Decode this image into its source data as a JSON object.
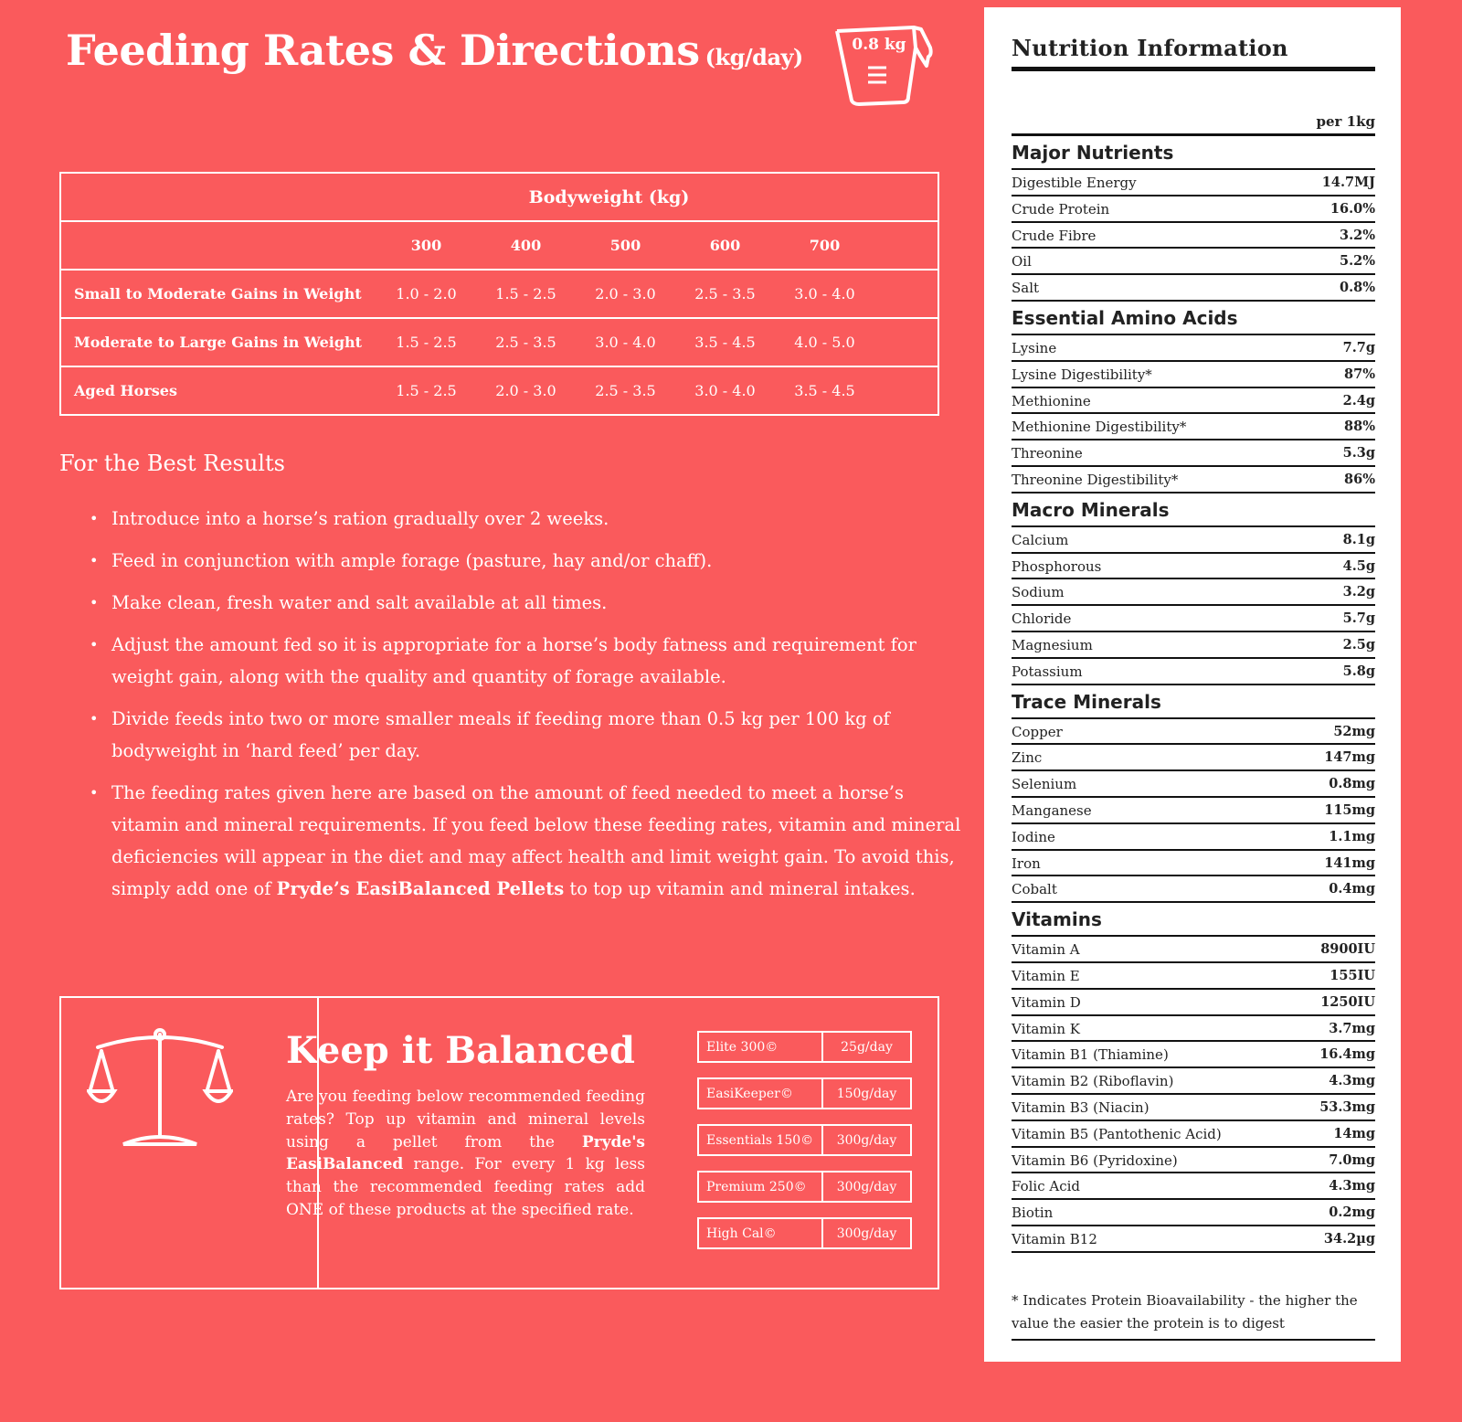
{
  "header": {
    "title": "Feeding Rates & Directions",
    "unit": "(kg/day)",
    "scoop_label": "0.8 kg"
  },
  "feeding_table": {
    "heading": "Bodyweight (kg)",
    "columns": [
      "300",
      "400",
      "500",
      "600",
      "700"
    ],
    "rows": [
      {
        "label": "Small to Moderate Gains in Weight",
        "values": [
          "1.0 - 2.0",
          "1.5 - 2.5",
          "2.0 - 3.0",
          "2.5 - 3.5",
          "3.0 - 4.0"
        ]
      },
      {
        "label": "Moderate to Large Gains in Weight",
        "values": [
          "1.5 - 2.5",
          "2.5 - 3.5",
          "3.0 - 4.0",
          "3.5 - 4.5",
          "4.0 - 5.0"
        ]
      },
      {
        "label": "Aged Horses",
        "values": [
          "1.5 - 2.5",
          "2.0 - 3.0",
          "2.5 - 3.5",
          "3.0 - 4.0",
          "3.5 - 4.5"
        ]
      }
    ]
  },
  "best_results": {
    "heading": "For the Best Results",
    "bullets": [
      [
        "Introduce into a horse’s ration gradually over 2 weeks."
      ],
      [
        "Feed in conjunction with ample forage (pasture, hay and/or chaff)."
      ],
      [
        "Make clean, fresh water and salt available at all times."
      ],
      [
        "Adjust the amount fed so it is appropriate for a horse’s body fatness and requirement for weight gain, along with the quality and quantity of forage available."
      ],
      [
        "Divide feeds into two or more smaller meals if feeding more than 0.5 kg per 100 kg of bodyweight in ‘hard feed’ per day."
      ],
      [
        "The feeding rates given here are based on the amount of feed needed to meet a horse’s vitamin and mineral requirements. If you feed below these feeding rates, vitamin and mineral deficiencies will appear in the diet and may affect health and limit weight gain. To avoid this, simply add one of ",
        "Pryde’s EasiBalanced Pellets",
        " to top up vitamin and mineral intakes."
      ]
    ]
  },
  "balanced": {
    "title": "Keep it Balanced",
    "text": [
      "Are you feeding below recommended feeding rates? Top up vitamin and mineral levels using a pellet from the ",
      "Pryde's EasiBalanced",
      " range. For every 1 kg less than the recommended feeding rates add ONE of these products at the specified rate."
    ],
    "products": [
      {
        "name": "Elite 300©",
        "rate": "25g/day"
      },
      {
        "name": "EasiKeeper©",
        "rate": "150g/day"
      },
      {
        "name": "Essentials 150©",
        "rate": "300g/day"
      },
      {
        "name": "Premium 250©",
        "rate": "300g/day"
      },
      {
        "name": "High Cal©",
        "rate": "300g/day"
      }
    ]
  },
  "nutrition": {
    "title": "Nutrition Information",
    "per": "per 1kg",
    "sections": [
      {
        "heading": "Major Nutrients",
        "rows": [
          [
            "Digestible Energy",
            "14.7MJ"
          ],
          [
            "Crude Protein",
            "16.0%"
          ],
          [
            "Crude Fibre",
            "3.2%"
          ],
          [
            "Oil",
            "5.2%"
          ],
          [
            "Salt",
            "0.8%"
          ]
        ]
      },
      {
        "heading": "Essential Amino Acids",
        "rows": [
          [
            "Lysine",
            "7.7g"
          ],
          [
            "Lysine Digestibility*",
            "87%"
          ],
          [
            "Methionine",
            "2.4g"
          ],
          [
            "Methionine Digestibility*",
            "88%"
          ],
          [
            "Threonine",
            "5.3g"
          ],
          [
            "Threonine Digestibility*",
            "86%"
          ]
        ]
      },
      {
        "heading": "Macro Minerals",
        "rows": [
          [
            "Calcium",
            "8.1g"
          ],
          [
            "Phosphorous",
            "4.5g"
          ],
          [
            "Sodium",
            "3.2g"
          ],
          [
            "Chloride",
            "5.7g"
          ],
          [
            "Magnesium",
            "2.5g"
          ],
          [
            "Potassium",
            "5.8g"
          ]
        ]
      },
      {
        "heading": "Trace Minerals",
        "rows": [
          [
            "Copper",
            "52mg"
          ],
          [
            "Zinc",
            "147mg"
          ],
          [
            "Selenium",
            "0.8mg"
          ],
          [
            "Manganese",
            "115mg"
          ],
          [
            "Iodine",
            "1.1mg"
          ],
          [
            "Iron",
            "141mg"
          ],
          [
            "Cobalt",
            "0.4mg"
          ]
        ]
      },
      {
        "heading": "Vitamins",
        "rows": [
          [
            "Vitamin A",
            "8900IU"
          ],
          [
            "Vitamin E",
            "155IU"
          ],
          [
            "Vitamin D",
            "1250IU"
          ],
          [
            "Vitamin K",
            "3.7mg"
          ],
          [
            "Vitamin B1 (Thiamine)",
            "16.4mg"
          ],
          [
            "Vitamin B2 (Riboflavin)",
            "4.3mg"
          ],
          [
            "Vitamin B3 (Niacin)",
            "53.3mg"
          ],
          [
            "Vitamin B5 (Pantothenic Acid)",
            "14mg"
          ],
          [
            "Vitamin B6 (Pyridoxine)",
            "7.0mg"
          ],
          [
            "Folic Acid",
            "4.3mg"
          ],
          [
            "Biotin",
            "0.2mg"
          ],
          [
            "Vitamin B12",
            "34.2µg"
          ]
        ]
      }
    ],
    "footnote": "* Indicates Protein Bioavailability - the higher the value the easier the protein is to digest"
  }
}
